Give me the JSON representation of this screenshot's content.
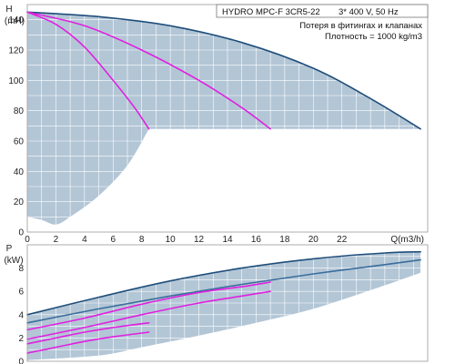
{
  "header": {
    "model": "HYDRO MPC-F 3CR5-22",
    "supply": "3* 400 V, 50 Hz",
    "note": "Потеря в фитингах и клапанах",
    "density": "Плотность = 1000 kg/m3"
  },
  "colors": {
    "area_fill": "#b3c6d6",
    "grid": "#ffffff",
    "curve_max": "#1f4e7a",
    "curve_secondary": "#e020e0",
    "curve_power_light": "#3a6e9c"
  },
  "chart_data": [
    {
      "type": "line",
      "title": "",
      "xlabel": "Q(m3/h)",
      "ylabel": "H",
      "yunit": "(mH)",
      "xlim": [
        0,
        28
      ],
      "ylim": [
        0,
        150
      ],
      "xticks": [
        0,
        2,
        4,
        6,
        8,
        10,
        12,
        14,
        16,
        18,
        20,
        22
      ],
      "yticks": [
        0,
        20,
        40,
        60,
        80,
        100,
        120,
        140
      ],
      "grid": true,
      "envelope": {
        "upper": [
          [
            0,
            145
          ],
          [
            5,
            142
          ],
          [
            10,
            136
          ],
          [
            15,
            125
          ],
          [
            20,
            108
          ],
          [
            24,
            88
          ],
          [
            27.5,
            68
          ]
        ],
        "lower": [
          [
            0,
            10
          ],
          [
            1,
            8
          ],
          [
            2,
            5
          ],
          [
            3,
            10
          ],
          [
            5,
            24
          ],
          [
            7,
            44
          ],
          [
            8.5,
            68
          ]
        ]
      },
      "series": [
        {
          "name": "",
          "color": "#1f4e7a",
          "x": [
            0,
            5,
            10,
            15,
            20,
            24,
            27.5
          ],
          "y": [
            145,
            142,
            136,
            125,
            108,
            88,
            68
          ]
        },
        {
          "name": "",
          "color": "#e020e0",
          "x": [
            0,
            4,
            8,
            12,
            15,
            17
          ],
          "y": [
            145,
            136,
            120,
            100,
            82,
            68
          ]
        },
        {
          "name": "",
          "color": "#e020e0",
          "x": [
            0,
            2,
            4,
            6,
            7.5,
            8.5
          ],
          "y": [
            145,
            137,
            122,
            100,
            82,
            68
          ]
        }
      ]
    },
    {
      "type": "line",
      "title": "",
      "xlabel": "",
      "ylabel": "P",
      "yunit": "(kW)",
      "xlim": [
        0,
        28
      ],
      "ylim": [
        0,
        10
      ],
      "xticks": [],
      "yticks": [
        0,
        2,
        4,
        6,
        8
      ],
      "grid": true,
      "envelope": {
        "upper": [
          [
            0,
            4.0
          ],
          [
            5,
            5.5
          ],
          [
            10,
            6.9
          ],
          [
            15,
            8.0
          ],
          [
            20,
            8.8
          ],
          [
            25,
            9.3
          ],
          [
            27.5,
            9.4
          ]
        ],
        "lower": [
          [
            0,
            0.1
          ],
          [
            5,
            0.5
          ],
          [
            8,
            1.2
          ],
          [
            12,
            2.2
          ],
          [
            16,
            3.3
          ],
          [
            20,
            4.5
          ],
          [
            24,
            6.1
          ],
          [
            27.5,
            7.6
          ]
        ]
      },
      "series": [
        {
          "name": "",
          "color": "#1f4e7a",
          "x": [
            0,
            5,
            10,
            15,
            20,
            25,
            27.5
          ],
          "y": [
            4.0,
            5.5,
            6.9,
            8.0,
            8.8,
            9.3,
            9.4
          ]
        },
        {
          "name": "",
          "color": "#3a6e9c",
          "x": [
            0,
            5,
            10,
            15,
            20,
            25,
            27.5
          ],
          "y": [
            3.3,
            4.5,
            5.6,
            6.6,
            7.5,
            8.3,
            8.7
          ]
        },
        {
          "name": "",
          "color": "#e020e0",
          "x": [
            0,
            4,
            8,
            12,
            15,
            17
          ],
          "y": [
            2.7,
            3.7,
            4.9,
            5.9,
            6.4,
            6.8
          ]
        },
        {
          "name": "",
          "color": "#e020e0",
          "x": [
            0,
            4,
            8,
            12,
            15,
            17
          ],
          "y": [
            1.9,
            2.9,
            4.0,
            5.0,
            5.6,
            6.0
          ]
        },
        {
          "name": "",
          "color": "#e020e0",
          "x": [
            0,
            2,
            4,
            6,
            8.5
          ],
          "y": [
            1.5,
            2.0,
            2.5,
            2.9,
            3.3
          ]
        },
        {
          "name": "",
          "color": "#e020e0",
          "x": [
            0,
            2,
            4,
            6,
            8.5
          ],
          "y": [
            0.7,
            1.2,
            1.7,
            2.1,
            2.5
          ]
        }
      ]
    }
  ]
}
